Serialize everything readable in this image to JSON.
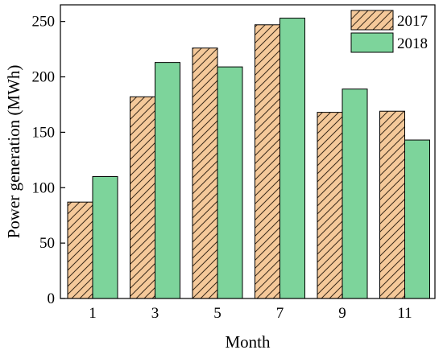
{
  "chart_data": {
    "type": "bar",
    "categories": [
      "1",
      "3",
      "5",
      "7",
      "9",
      "11"
    ],
    "series": [
      {
        "name": "2017",
        "values": [
          87,
          182,
          226,
          247,
          168,
          169
        ],
        "fill": "#f5c99a",
        "pattern": "diagonal-hatch"
      },
      {
        "name": "2018",
        "values": [
          110,
          213,
          209,
          253,
          189,
          143
        ],
        "fill": "#7dd49b",
        "pattern": "solid"
      }
    ],
    "title": "",
    "xlabel": "Month",
    "ylabel": "Power generation (MWh)",
    "ylim": [
      0,
      265
    ],
    "yticks": [
      0,
      50,
      100,
      150,
      200,
      250
    ],
    "grid": false,
    "legend_position": "top-right"
  }
}
